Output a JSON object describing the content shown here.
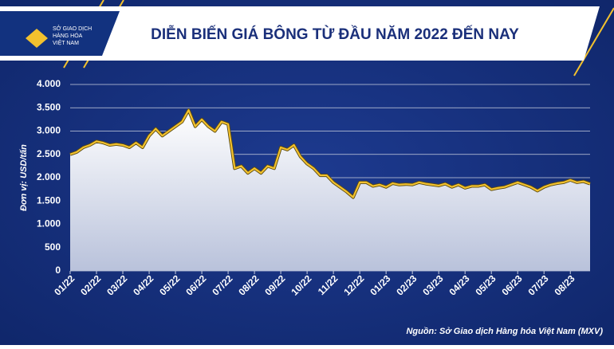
{
  "header": {
    "logo": [
      "SỞ GIAO DỊCH",
      "HÀNG HÓA",
      "VIỆT NAM"
    ]
  },
  "chart_data": {
    "type": "area",
    "title": "DIỄN BIẾN GIÁ BÔNG TỪ ĐẦU NĂM 2022 ĐẾN NAY",
    "y_label": "Đơn vị: USD/tấn",
    "source": "Nguồn: Sở Giao dịch Hàng hóa Việt Nam (MXV)",
    "x": [
      0,
      0.25,
      0.5,
      0.75,
      1,
      1.25,
      1.5,
      1.75,
      2,
      2.25,
      2.5,
      2.75,
      3,
      3.25,
      3.5,
      3.75,
      4,
      4.25,
      4.5,
      4.75,
      5,
      5.25,
      5.5,
      5.75,
      6,
      6.25,
      6.5,
      6.75,
      7,
      7.25,
      7.5,
      7.75,
      8,
      8.25,
      8.5,
      8.75,
      9,
      9.25,
      9.5,
      9.75,
      10,
      10.25,
      10.5,
      10.75,
      11,
      11.25,
      11.5,
      11.75,
      12,
      12.25,
      12.5,
      12.75,
      13,
      13.25,
      13.5,
      13.75,
      14,
      14.25,
      14.5,
      14.75,
      15,
      15.25,
      15.5,
      15.75,
      16,
      16.25,
      16.5,
      16.75,
      17,
      17.25,
      17.5,
      17.75,
      18,
      18.25,
      18.5,
      18.75,
      19,
      19.25,
      19.5,
      19.75
    ],
    "values": [
      2500,
      2550,
      2650,
      2700,
      2780,
      2750,
      2700,
      2720,
      2700,
      2650,
      2750,
      2650,
      2900,
      3050,
      2900,
      3000,
      3100,
      3200,
      3450,
      3100,
      3250,
      3100,
      3000,
      3200,
      3150,
      2200,
      2250,
      2100,
      2200,
      2100,
      2250,
      2200,
      2650,
      2600,
      2700,
      2450,
      2300,
      2200,
      2050,
      2050,
      1900,
      1800,
      1700,
      1580,
      1900,
      1900,
      1820,
      1850,
      1800,
      1880,
      1850,
      1860,
      1850,
      1900,
      1870,
      1850,
      1830,
      1870,
      1800,
      1850,
      1780,
      1820,
      1820,
      1850,
      1750,
      1780,
      1800,
      1850,
      1900,
      1850,
      1800,
      1720,
      1800,
      1850,
      1880,
      1900,
      1950,
      1900,
      1920,
      1870
    ],
    "color": "#f2c12e",
    "xlim": [
      0,
      19.75
    ],
    "xticks": [
      {
        "value": 0,
        "label": "01/22"
      },
      {
        "value": 1,
        "label": "02/22"
      },
      {
        "value": 2,
        "label": "03/22"
      },
      {
        "value": 3,
        "label": "04/22"
      },
      {
        "value": 4,
        "label": "05/22"
      },
      {
        "value": 5,
        "label": "06/22"
      },
      {
        "value": 6,
        "label": "07/22"
      },
      {
        "value": 7,
        "label": "08/22"
      },
      {
        "value": 8,
        "label": "09/22"
      },
      {
        "value": 9,
        "label": "10/22"
      },
      {
        "value": 10,
        "label": "11/22"
      },
      {
        "value": 11,
        "label": "12/22"
      },
      {
        "value": 12,
        "label": "01/23"
      },
      {
        "value": 13,
        "label": "02/23"
      },
      {
        "value": 14,
        "label": "03/23"
      },
      {
        "value": 15,
        "label": "04/23"
      },
      {
        "value": 16,
        "label": "05/23"
      },
      {
        "value": 17,
        "label": "06/23"
      },
      {
        "value": 18,
        "label": "07/23"
      },
      {
        "value": 19,
        "label": "08/23"
      }
    ],
    "ylim": [
      0,
      4000
    ],
    "yticks": [
      0,
      500,
      {
        "value": 1000,
        "label": "1.000"
      },
      {
        "value": 1500,
        "label": "1.500"
      },
      {
        "value": 2000,
        "label": "2.000"
      },
      {
        "value": 2500,
        "label": "2.500"
      },
      {
        "value": 3000,
        "label": "3.000"
      },
      {
        "value": 3500,
        "label": "3.500"
      },
      {
        "value": 4000,
        "label": "4.000"
      }
    ],
    "grid": true
  }
}
